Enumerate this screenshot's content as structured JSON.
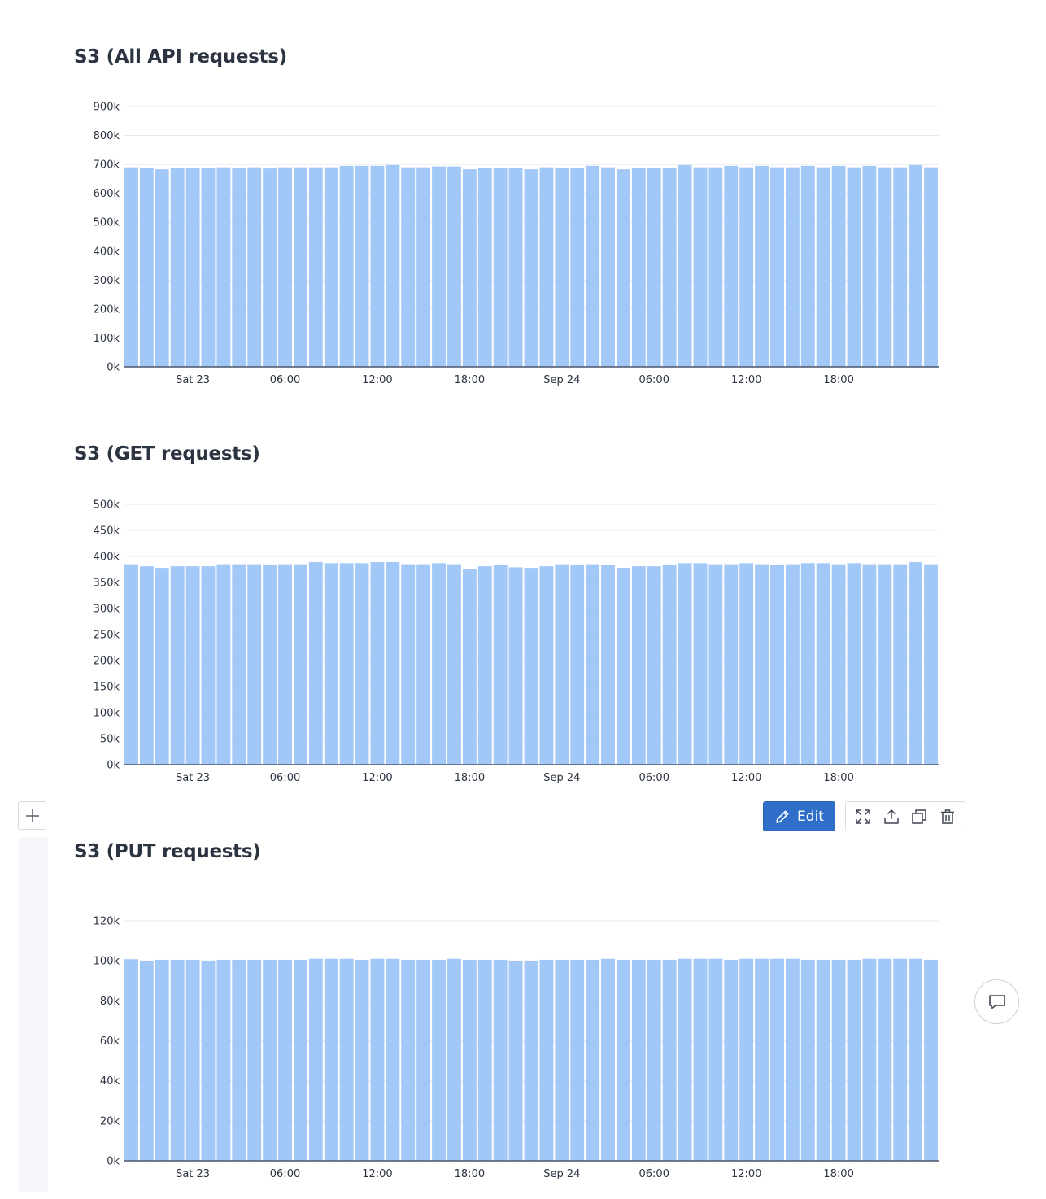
{
  "panels": [
    {
      "title": "S3 (All API requests)"
    },
    {
      "title": "S3 (GET requests)"
    },
    {
      "title": "S3 (PUT requests)"
    }
  ],
  "toolbar": {
    "edit_label": "Edit",
    "icons": [
      "expand-icon",
      "share-icon",
      "duplicate-icon",
      "trash-icon"
    ]
  },
  "colors": {
    "bar": "#a2c8f7",
    "gridline": "#e6e8eb",
    "axis": "#4a5568",
    "title": "#2c3442",
    "edit_button": "#2f6fca"
  },
  "chart_data": [
    {
      "type": "bar",
      "title": "S3 (All API requests)",
      "xlabel": "",
      "ylabel": "",
      "ylim": [
        0,
        900000
      ],
      "yticks": [
        "0k",
        "100k",
        "200k",
        "300k",
        "400k",
        "500k",
        "600k",
        "700k",
        "800k",
        "900k"
      ],
      "xticks": [
        {
          "label": "Sat 23",
          "bar_index": 4
        },
        {
          "label": "06:00",
          "bar_index": 10
        },
        {
          "label": "12:00",
          "bar_index": 16
        },
        {
          "label": "18:00",
          "bar_index": 22
        },
        {
          "label": "Sep 24",
          "bar_index": 28
        },
        {
          "label": "06:00",
          "bar_index": 34
        },
        {
          "label": "12:00",
          "bar_index": 40
        },
        {
          "label": "18:00",
          "bar_index": 46
        }
      ],
      "grid": true,
      "series": [
        {
          "values": [
            690000,
            687000,
            683000,
            687000,
            687000,
            687000,
            690000,
            687000,
            690000,
            686000,
            690000,
            690000,
            690000,
            690000,
            695000,
            695000,
            695000,
            698000,
            690000,
            690000,
            693000,
            693000,
            683000,
            687000,
            687000,
            687000,
            683000,
            690000,
            687000,
            687000,
            695000,
            690000,
            683000,
            687000,
            687000,
            687000,
            698000,
            690000,
            690000,
            695000,
            690000,
            695000,
            690000,
            690000,
            695000,
            690000,
            695000,
            690000,
            695000,
            690000,
            690000,
            698000,
            690000
          ]
        }
      ]
    },
    {
      "type": "bar",
      "title": "S3 (GET requests)",
      "xlabel": "",
      "ylabel": "",
      "ylim": [
        0,
        500000
      ],
      "yticks": [
        "0k",
        "50k",
        "100k",
        "150k",
        "200k",
        "250k",
        "300k",
        "350k",
        "400k",
        "450k",
        "500k"
      ],
      "xticks": [
        {
          "label": "Sat 23",
          "bar_index": 4
        },
        {
          "label": "06:00",
          "bar_index": 10
        },
        {
          "label": "12:00",
          "bar_index": 16
        },
        {
          "label": "18:00",
          "bar_index": 22
        },
        {
          "label": "Sep 24",
          "bar_index": 28
        },
        {
          "label": "06:00",
          "bar_index": 34
        },
        {
          "label": "12:00",
          "bar_index": 40
        },
        {
          "label": "18:00",
          "bar_index": 46
        }
      ],
      "grid": true,
      "series": [
        {
          "values": [
            385000,
            381000,
            378000,
            381000,
            381000,
            381000,
            385000,
            385000,
            385000,
            383000,
            385000,
            385000,
            389000,
            387000,
            387000,
            387000,
            389000,
            389000,
            385000,
            385000,
            387000,
            385000,
            376000,
            381000,
            383000,
            379000,
            378000,
            381000,
            385000,
            383000,
            385000,
            383000,
            378000,
            381000,
            381000,
            383000,
            387000,
            387000,
            385000,
            385000,
            387000,
            385000,
            383000,
            385000,
            387000,
            387000,
            385000,
            387000,
            385000,
            385000,
            385000,
            389000,
            385000
          ]
        }
      ]
    },
    {
      "type": "bar",
      "title": "S3 (PUT requests)",
      "xlabel": "",
      "ylabel": "",
      "ylim": [
        0,
        120000
      ],
      "yticks": [
        "0k",
        "20k",
        "40k",
        "60k",
        "80k",
        "100k",
        "120k"
      ],
      "xticks": [
        {
          "label": "Sat 23",
          "bar_index": 4
        },
        {
          "label": "06:00",
          "bar_index": 10
        },
        {
          "label": "12:00",
          "bar_index": 16
        },
        {
          "label": "18:00",
          "bar_index": 22
        },
        {
          "label": "Sep 24",
          "bar_index": 28
        },
        {
          "label": "06:00",
          "bar_index": 34
        },
        {
          "label": "12:00",
          "bar_index": 40
        },
        {
          "label": "18:00",
          "bar_index": 46
        }
      ],
      "grid": true,
      "series": [
        {
          "values": [
            100800,
            100000,
            100500,
            100500,
            100500,
            100000,
            100500,
            100500,
            100500,
            100500,
            100500,
            100500,
            101000,
            101000,
            101000,
            100500,
            101000,
            101000,
            100500,
            100500,
            100500,
            101000,
            100500,
            100500,
            100500,
            100000,
            100000,
            100500,
            100500,
            100500,
            100500,
            101000,
            100500,
            100500,
            100500,
            100500,
            101000,
            101000,
            101000,
            100500,
            101000,
            101000,
            101000,
            101000,
            100500,
            100500,
            100500,
            100500,
            101000,
            101000,
            101000,
            101000,
            100500
          ]
        }
      ]
    }
  ]
}
